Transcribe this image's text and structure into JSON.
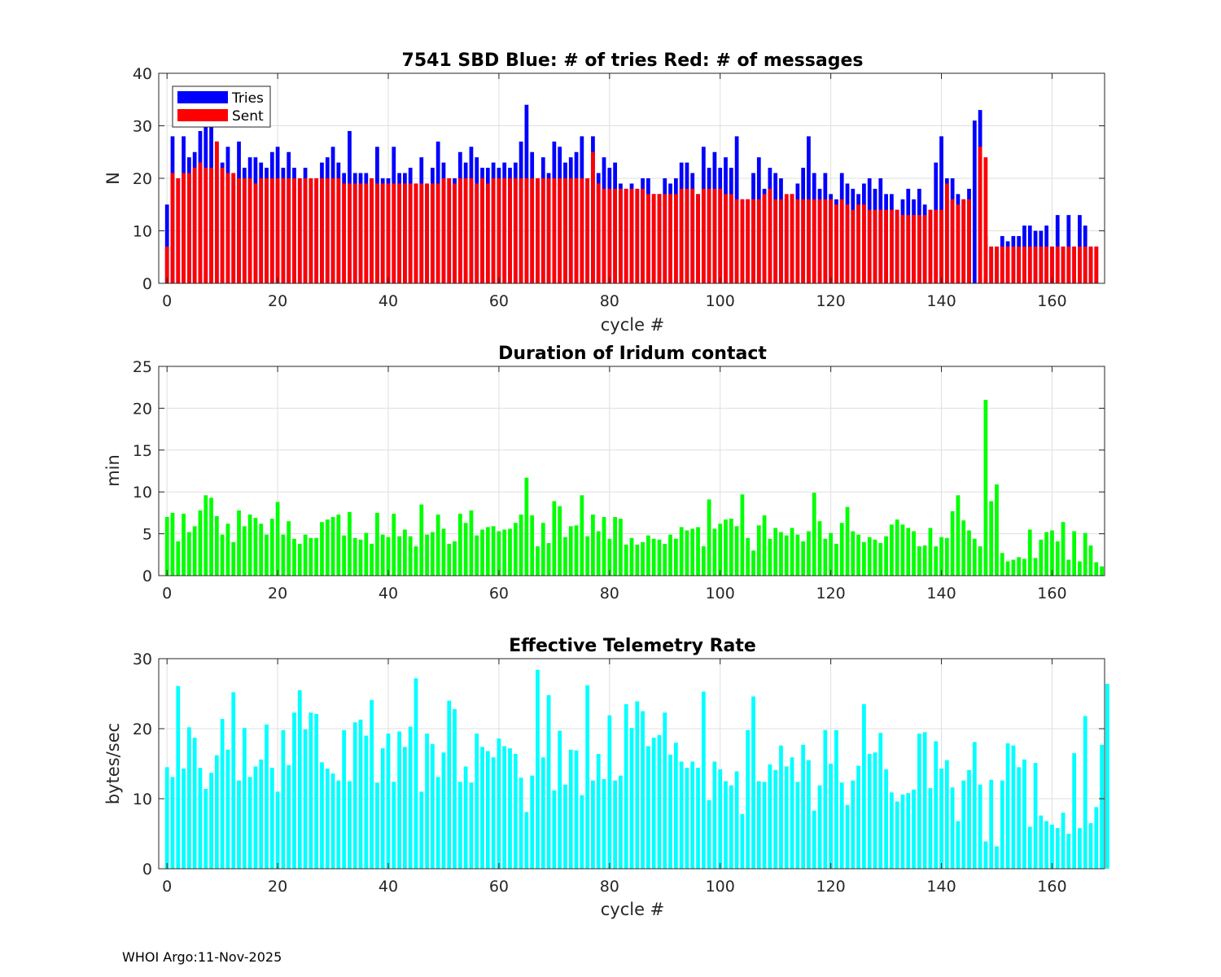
{
  "footer": "WHOI Argo:11-Nov-2025",
  "chart_data": [
    {
      "type": "bar",
      "stacked": "overlay",
      "title": "7541 SBD  Blue: # of tries   Red: # of messages",
      "xlabel": "cycle #",
      "ylabel": "N",
      "xlim": [
        -1.5,
        169.5
      ],
      "ylim": [
        0,
        40
      ],
      "xticks": [
        0,
        20,
        40,
        60,
        80,
        100,
        120,
        140,
        160
      ],
      "yticks": [
        0,
        10,
        20,
        30,
        40
      ],
      "grid": true,
      "legend": {
        "placement": "top-left",
        "entries": [
          {
            "label": "Tries",
            "color": "#0000ff"
          },
          {
            "label": "Sent",
            "color": "#ff0000"
          }
        ]
      },
      "x_start": 0,
      "series": [
        {
          "name": "Tries",
          "color": "#0000ff",
          "values": [
            15,
            28,
            20,
            28,
            24,
            25,
            29,
            31,
            31,
            27,
            23,
            26,
            21,
            27,
            22,
            24,
            24,
            23,
            22,
            25,
            26,
            22,
            25,
            22,
            20,
            22,
            20,
            20,
            23,
            24,
            26,
            23,
            21,
            29,
            21,
            21,
            21,
            20,
            26,
            20,
            20,
            26,
            21,
            21,
            22,
            19,
            24,
            19,
            22,
            27,
            23,
            20,
            20,
            25,
            23,
            26,
            24,
            22,
            22,
            23,
            22,
            23,
            22,
            23,
            27,
            34,
            25,
            20,
            24,
            21,
            27,
            26,
            23,
            24,
            25,
            28,
            20,
            28,
            21,
            24,
            22,
            23,
            19,
            18,
            19,
            18,
            20,
            20,
            17,
            17,
            20,
            19,
            20,
            23,
            23,
            21,
            17,
            26,
            22,
            25,
            22,
            24,
            22,
            28,
            16,
            16,
            21,
            24,
            18,
            22,
            21,
            20,
            16,
            17,
            19,
            22,
            28,
            21,
            18,
            21,
            17,
            16,
            21,
            19,
            18,
            17,
            19,
            20,
            18,
            20,
            17,
            17,
            14,
            16,
            18,
            16,
            18,
            15,
            14,
            23,
            28,
            20,
            20,
            17,
            16,
            18,
            31,
            33,
            9,
            7,
            7,
            9,
            8,
            9,
            9,
            11,
            11,
            10,
            10,
            11,
            7,
            13,
            7,
            13,
            7,
            13,
            11,
            7,
            7
          ]
        },
        {
          "name": "Sent",
          "color": "#ff0000",
          "values": [
            7,
            21,
            20,
            21,
            21,
            22,
            23,
            22,
            22,
            27,
            22,
            21,
            21,
            20,
            20,
            20,
            19,
            20,
            20,
            20,
            20,
            20,
            20,
            20,
            20,
            20,
            20,
            20,
            20,
            20,
            20,
            20,
            19,
            19,
            19,
            19,
            19,
            20,
            19,
            19,
            19,
            19,
            19,
            19,
            19,
            19,
            19,
            19,
            19,
            19,
            20,
            20,
            19,
            20,
            20,
            20,
            19,
            20,
            19,
            20,
            20,
            20,
            20,
            20,
            20,
            20,
            20,
            20,
            20,
            20,
            20,
            20,
            20,
            20,
            20,
            20,
            20,
            25,
            19,
            18,
            18,
            18,
            18,
            18,
            18,
            18,
            18,
            17,
            17,
            17,
            17,
            17,
            17,
            18,
            18,
            18,
            17,
            18,
            18,
            18,
            18,
            17,
            17,
            16,
            16,
            16,
            16,
            16,
            17,
            18,
            16,
            16,
            17,
            17,
            16,
            16,
            16,
            16,
            16,
            16,
            16,
            15,
            16,
            15,
            14,
            15,
            15,
            14,
            14,
            14,
            14,
            14,
            14,
            13,
            13,
            13,
            13,
            13,
            14,
            14,
            14,
            19,
            16,
            15,
            16,
            16,
            0,
            26,
            24,
            7,
            7,
            7,
            7,
            7,
            7,
            7,
            7,
            7,
            7,
            7,
            7,
            7,
            7,
            7,
            7,
            7,
            7,
            7,
            7
          ]
        }
      ]
    },
    {
      "type": "bar",
      "title": "Duration of Iridum contact",
      "xlabel": "",
      "ylabel": "min",
      "xlim": [
        -1.5,
        169.5
      ],
      "ylim": [
        0,
        25
      ],
      "xticks": [
        0,
        20,
        40,
        60,
        80,
        100,
        120,
        140,
        160
      ],
      "yticks": [
        0,
        5,
        10,
        15,
        20,
        25
      ],
      "grid": true,
      "x_start": 0,
      "series": [
        {
          "name": "Duration",
          "color": "#00ff00",
          "values": [
            7.0,
            7.5,
            4.1,
            7.4,
            5.2,
            5.9,
            7.8,
            9.6,
            9.3,
            7.1,
            4.9,
            6.2,
            4.0,
            7.8,
            5.9,
            7.3,
            6.9,
            6.2,
            4.9,
            6.8,
            8.8,
            4.9,
            6.5,
            4.4,
            3.8,
            4.9,
            4.5,
            4.5,
            6.4,
            6.7,
            7.0,
            7.3,
            4.8,
            7.6,
            4.5,
            4.3,
            5.1,
            3.8,
            7.5,
            4.9,
            4.6,
            7.4,
            4.7,
            5.5,
            4.7,
            3.5,
            8.5,
            4.9,
            5.2,
            7.3,
            5.6,
            3.8,
            4.1,
            7.4,
            6.3,
            7.8,
            4.8,
            5.5,
            5.8,
            5.9,
            5.3,
            5.5,
            5.6,
            6.3,
            7.3,
            11.7,
            7.2,
            3.5,
            6.3,
            3.9,
            8.9,
            8.3,
            4.6,
            5.9,
            6.0,
            9.6,
            4.7,
            7.3,
            5.3,
            7.0,
            4.4,
            7.0,
            6.8,
            3.7,
            4.5,
            3.7,
            4.0,
            4.8,
            4.4,
            4.3,
            3.8,
            4.9,
            4.4,
            5.8,
            5.4,
            5.6,
            5.8,
            3.5,
            9.1,
            5.6,
            6.2,
            6.7,
            6.8,
            5.9,
            9.7,
            4.5,
            3.0,
            6.0,
            7.2,
            4.4,
            5.7,
            5.2,
            4.8,
            5.7,
            4.9,
            4.1,
            5.3,
            9.9,
            6.5,
            4.4,
            5.1,
            3.8,
            6.3,
            8.2,
            5.3,
            4.9,
            4.0,
            4.6,
            4.3,
            3.9,
            4.7,
            6.1,
            6.7,
            6.1,
            5.7,
            5.3,
            3.5,
            3.6,
            5.7,
            3.5,
            4.6,
            4.5,
            7.7,
            9.6,
            6.6,
            5.4,
            4.4,
            3.5,
            21.0,
            8.9,
            10.9,
            2.7,
            1.7,
            1.9,
            2.2,
            2.0,
            5.5,
            2.1,
            4.3,
            5.2,
            5.4,
            4.1,
            6.4,
            1.9,
            5.3,
            1.7,
            5.1,
            3.6,
            1.6,
            1.1
          ]
        }
      ]
    },
    {
      "type": "bar",
      "title": "Effective Telemetry Rate",
      "xlabel": "cycle #",
      "ylabel": "bytes/sec",
      "xlim": [
        -1.5,
        169.5
      ],
      "ylim": [
        0,
        30
      ],
      "xticks": [
        0,
        20,
        40,
        60,
        80,
        100,
        120,
        140,
        160
      ],
      "yticks": [
        0,
        10,
        20,
        30
      ],
      "grid": true,
      "x_start": 0,
      "series": [
        {
          "name": "Rate",
          "color": "#00ffff",
          "values": [
            14.5,
            13.1,
            26.1,
            14.3,
            20.2,
            18.7,
            14.4,
            11.4,
            13.7,
            16.2,
            21.4,
            17.0,
            25.2,
            12.6,
            20.1,
            13.1,
            14.6,
            15.6,
            20.6,
            14.4,
            11.0,
            19.8,
            14.8,
            22.3,
            25.5,
            19.9,
            22.3,
            22.1,
            15.2,
            14.3,
            13.6,
            12.6,
            19.8,
            12.5,
            20.9,
            21.3,
            19.0,
            24.1,
            12.3,
            17.2,
            19.3,
            12.4,
            19.6,
            17.4,
            20.3,
            27.2,
            11.0,
            19.3,
            17.8,
            13.1,
            16.6,
            24.0,
            22.8,
            12.4,
            14.6,
            12.3,
            19.3,
            17.4,
            16.8,
            15.9,
            18.6,
            17.5,
            17.2,
            16.4,
            13.0,
            8.1,
            13.3,
            28.4,
            15.9,
            24.8,
            11.2,
            19.7,
            12.0,
            17.0,
            16.9,
            10.5,
            26.2,
            12.6,
            16.4,
            12.8,
            21.9,
            12.6,
            13.3,
            23.5,
            20.1,
            23.9,
            22.5,
            17.5,
            18.7,
            19.1,
            22.3,
            16.3,
            18.0,
            15.3,
            14.4,
            15.3,
            14.4,
            25.3,
            9.8,
            15.3,
            14.2,
            12.5,
            11.9,
            13.9,
            7.8,
            19.8,
            24.6,
            12.5,
            12.4,
            14.9,
            14.1,
            17.6,
            14.6,
            15.9,
            12.4,
            17.7,
            15.5,
            8.3,
            11.9,
            19.8,
            15.0,
            19.8,
            12.3,
            9.1,
            12.6,
            14.7,
            23.5,
            16.4,
            16.6,
            19.4,
            14.2,
            10.9,
            9.6,
            10.6,
            10.8,
            11.3,
            19.3,
            19.5,
            11.5,
            18.2,
            14.3,
            15.5,
            11.6,
            6.8,
            12.6,
            14.1,
            18.1,
            12.0,
            3.9,
            12.7,
            3.2,
            12.6,
            17.9,
            17.6,
            14.5,
            15.6,
            6.0,
            15.1,
            7.6,
            6.8,
            6.3,
            5.8,
            8.0,
            5.0,
            16.5,
            5.8,
            21.8,
            6.5,
            8.8,
            17.7,
            26.4
          ]
        }
      ]
    }
  ]
}
